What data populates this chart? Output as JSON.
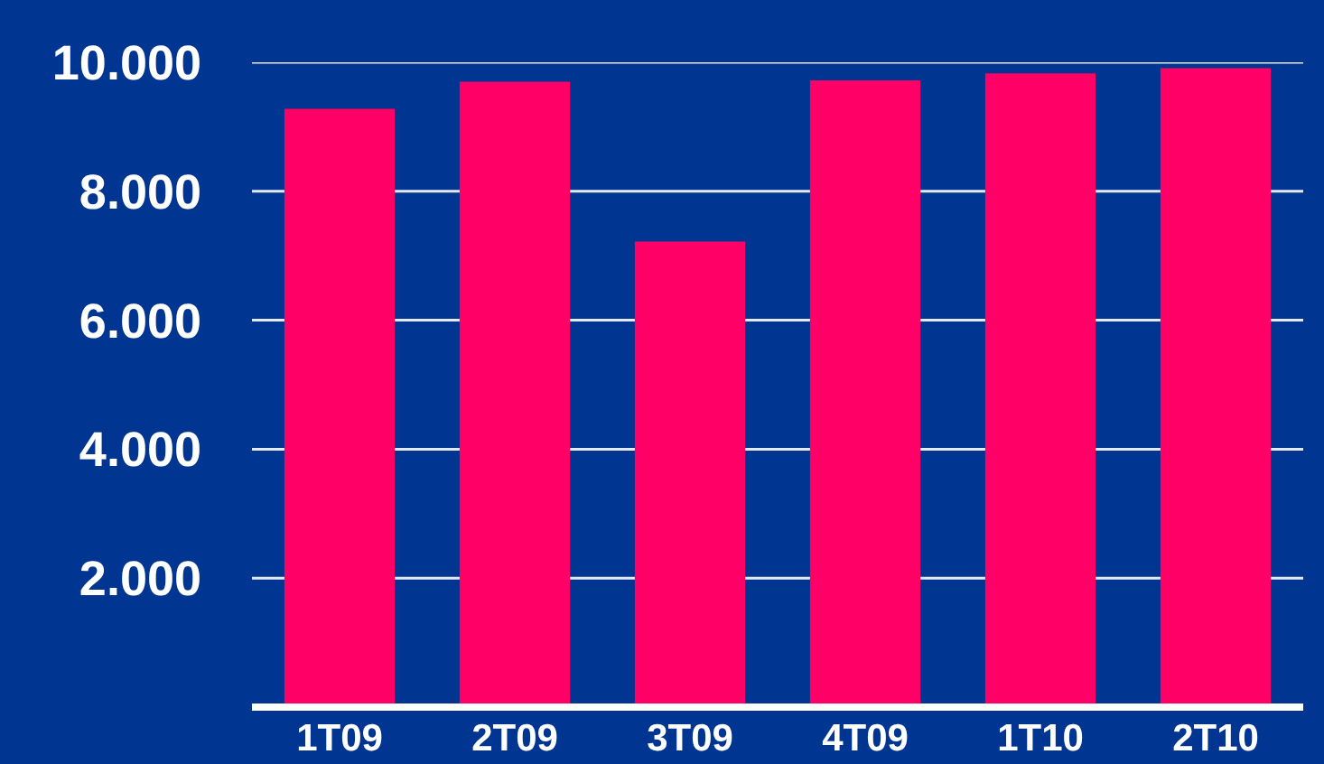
{
  "chart_data": {
    "type": "bar",
    "categories": [
      "1T09",
      "2T09",
      "3T09",
      "4T09",
      "1T10",
      "2T10"
    ],
    "values": [
      9280,
      9700,
      7220,
      9720,
      9830,
      9910
    ],
    "color": "#ff0066",
    "ylim": [
      0,
      10000
    ],
    "yticks": [
      {
        "value": 2000,
        "label": "2.000"
      },
      {
        "value": 4000,
        "label": "4.000"
      },
      {
        "value": 6000,
        "label": "6.000"
      },
      {
        "value": 8000,
        "label": "8.000"
      },
      {
        "value": 10000,
        "label": "10.000"
      }
    ],
    "grid": "y"
  }
}
